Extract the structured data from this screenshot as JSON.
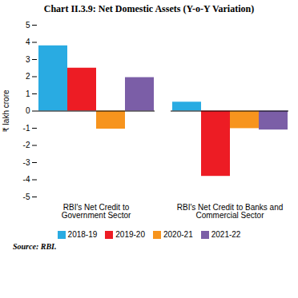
{
  "chart_data": {
    "type": "bar",
    "title": "Chart II.3.9: Net Domestic Assets (Y-o-Y Variation)",
    "ylabel": "₹ lakh crore",
    "source": "Source: RBI.",
    "categories": [
      "RBI's Net Credit to\nGovernment Sector",
      "RBI's Net Credit to Banks and\nCommercial Sector"
    ],
    "series": [
      {
        "name": "2018-19",
        "color": "#29ABE2",
        "values": [
          3.8,
          0.52
        ]
      },
      {
        "name": "2019-20",
        "color": "#ED1C24",
        "values": [
          2.5,
          -3.8
        ]
      },
      {
        "name": "2020-21",
        "color": "#F7941D",
        "values": [
          -1.05,
          -1.02
        ]
      },
      {
        "name": "2021-22",
        "color": "#7B5EA7",
        "values": [
          1.95,
          -1.1
        ]
      }
    ],
    "ylim": [
      -5,
      5
    ],
    "yticks": [
      -5,
      -4,
      -3,
      -2,
      -1,
      0,
      1,
      2,
      3,
      4,
      5
    ],
    "grid": false,
    "legend": "bottom"
  }
}
